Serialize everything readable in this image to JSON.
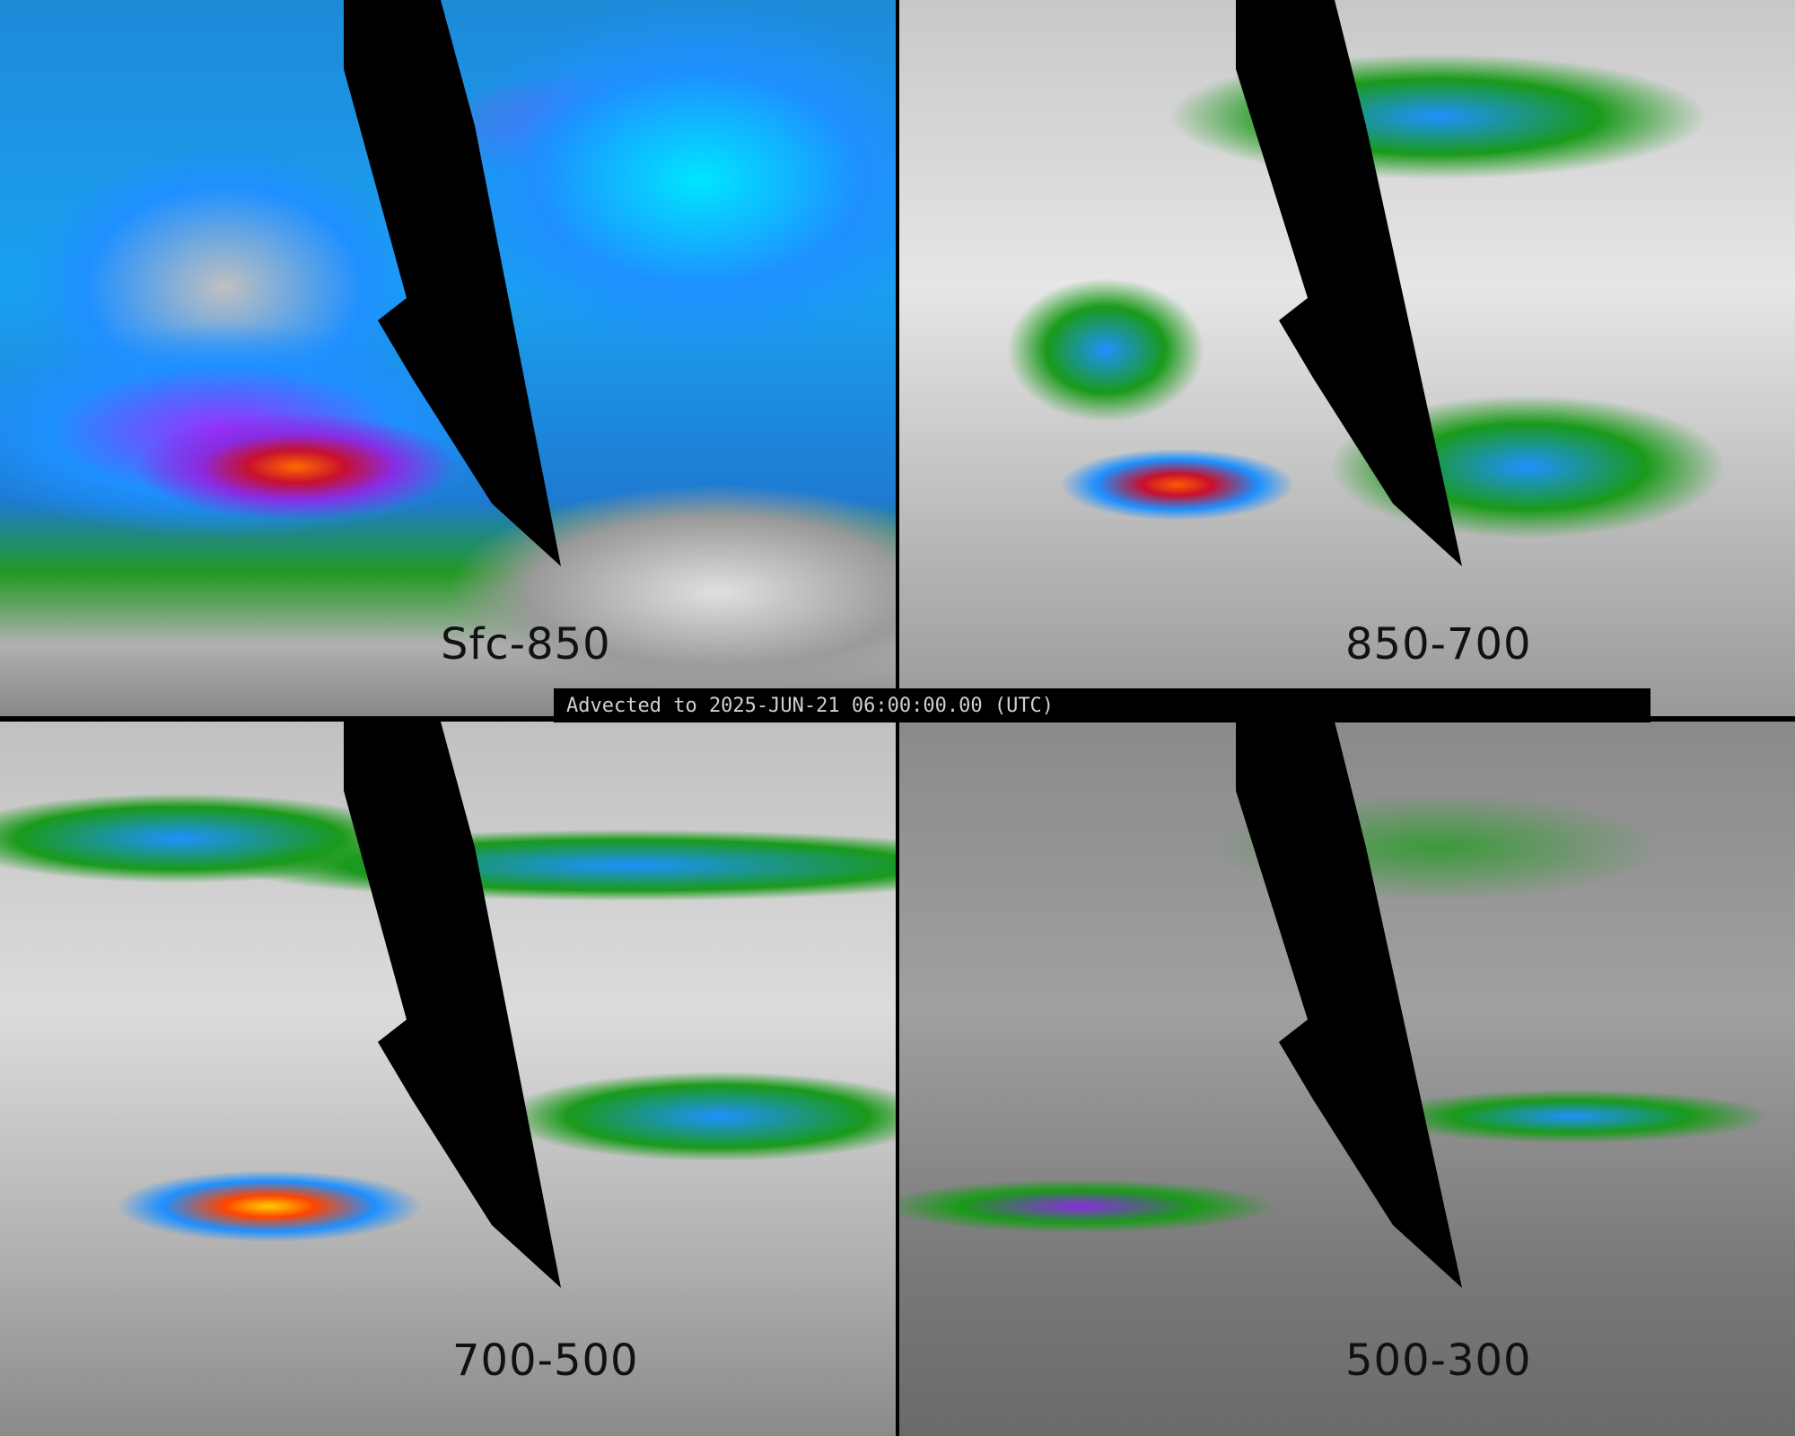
{
  "timestamp": "Advected to 2025-JUN-21 06:00:00.00 (UTC)",
  "panels": [
    {
      "label": "Sfc-850"
    },
    {
      "label": "850-700"
    },
    {
      "label": "700-500"
    },
    {
      "label": "500-300"
    }
  ],
  "colors": {
    "low": "#c0c0c0",
    "moderate": "#1a9a1a",
    "high": "#1e90ff",
    "very_high": "#00e5ff",
    "extreme": "#8a2be2",
    "peak": "#ff4500",
    "no_data": "#000000"
  }
}
